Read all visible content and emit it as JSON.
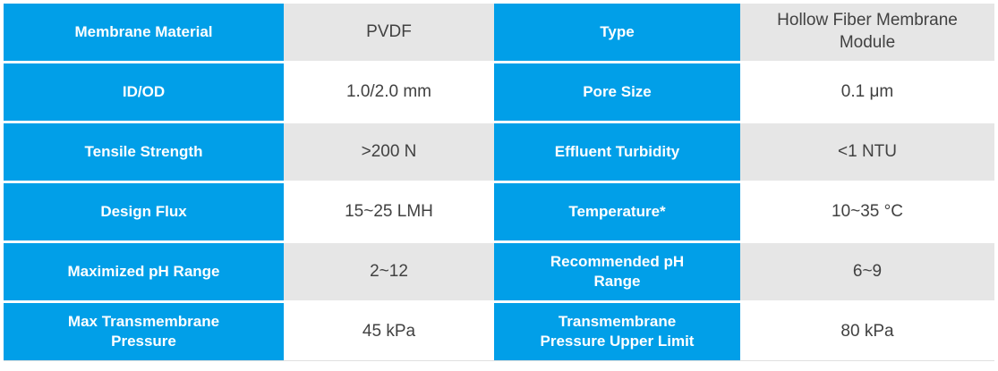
{
  "table": {
    "columns": [
      "left_label",
      "left_value",
      "right_label",
      "right_value"
    ],
    "rows": [
      {
        "left_label": "Membrane Material",
        "left_value": "PVDF",
        "right_label": "Type",
        "right_value": "Hollow Fiber Membrane Module"
      },
      {
        "left_label": "ID/OD",
        "left_value": "1.0/2.0 mm",
        "right_label": "Pore Size",
        "right_value": "0.1 μm"
      },
      {
        "left_label": "Tensile Strength",
        "left_value": ">200 N",
        "right_label": "Effluent Turbidity",
        "right_value": "<1 NTU"
      },
      {
        "left_label": "Design Flux",
        "left_value": "15~25 LMH",
        "right_label": "Temperature*",
        "right_value": "10~35 °C"
      },
      {
        "left_label": "Maximized pH Range",
        "left_value": "2~12",
        "right_label": "Recommended pH Range",
        "right_value": "6~9"
      },
      {
        "left_label": "Max Transmembrane Pressure",
        "left_value": "45 kPa",
        "right_label": "Transmembrane Pressure Upper Limit",
        "right_value": "80 kPa"
      }
    ],
    "colors": {
      "label_background": "#019fe8",
      "label_text": "#ffffff",
      "value_row_odd_background": "#e6e6e6",
      "value_row_even_background": "#ffffff",
      "value_text": "#414141",
      "bottom_rule": "#e0e0e0"
    }
  }
}
